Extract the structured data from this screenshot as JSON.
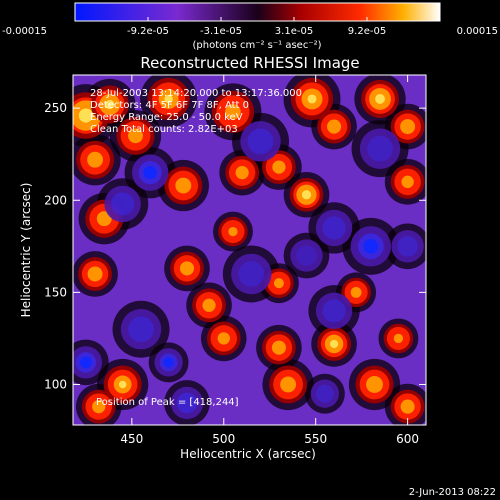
{
  "window": {
    "footer_date": "2-Jun-2013 08:22"
  },
  "colorbar": {
    "tick_labels": [
      "-0.00015",
      "-9.2e-05",
      "-3.1e-05",
      "3.1e-05",
      "9.2e-05",
      "0.00015"
    ],
    "units": "(photons cm⁻² s⁻¹ asec⁻²)",
    "stops": [
      {
        "offset": 0.0,
        "color": "#0018ff"
      },
      {
        "offset": 0.28,
        "color": "#7a2ad0"
      },
      {
        "offset": 0.5,
        "color": "#1a001a"
      },
      {
        "offset": 0.62,
        "color": "#a80000"
      },
      {
        "offset": 0.78,
        "color": "#ff2a00"
      },
      {
        "offset": 0.9,
        "color": "#ffb000"
      },
      {
        "offset": 1.0,
        "color": "#ffffff"
      }
    ]
  },
  "chart_data": {
    "type": "heatmap",
    "title": "Reconstructed RHESSI Image",
    "xlabel": "Heliocentric X (arcsec)",
    "ylabel": "Heliocentric Y (arcsec)",
    "xlim": [
      418,
      610
    ],
    "ylim": [
      78,
      268
    ],
    "x_ticks": [
      450,
      500,
      550,
      600
    ],
    "y_ticks": [
      100,
      150,
      200,
      250
    ],
    "colorbar_range": [
      -0.00015,
      0.00015
    ],
    "annotations": {
      "time": "28-Jul-2003 13:14:20.000 to 13:17:36.000",
      "detectors": "Detectors: 4F 5F 6F 7F 8F, Att 0",
      "energy": "Energy Range: 25.0 - 50.0 keV",
      "clean": "Clean    Total counts: 2.82E+03",
      "peak": "Position of Peak = [418,244]"
    },
    "peak": {
      "x": 418,
      "y": 244
    },
    "grid": false,
    "features": [
      {
        "x": 425,
        "y": 246,
        "v": 1.0,
        "s": 11
      },
      {
        "x": 438,
        "y": 252,
        "v": 0.8,
        "s": 9
      },
      {
        "x": 470,
        "y": 255,
        "v": 0.65,
        "s": 10
      },
      {
        "x": 452,
        "y": 235,
        "v": 0.5,
        "s": 9
      },
      {
        "x": 505,
        "y": 248,
        "v": 0.45,
        "s": 10
      },
      {
        "x": 548,
        "y": 255,
        "v": 0.7,
        "s": 10
      },
      {
        "x": 560,
        "y": 240,
        "v": 0.55,
        "s": 8
      },
      {
        "x": 585,
        "y": 255,
        "v": 0.85,
        "s": 9
      },
      {
        "x": 600,
        "y": 240,
        "v": 0.6,
        "s": 8
      },
      {
        "x": 430,
        "y": 222,
        "v": 0.55,
        "s": 9
      },
      {
        "x": 478,
        "y": 208,
        "v": 0.55,
        "s": 9
      },
      {
        "x": 510,
        "y": 215,
        "v": 0.5,
        "s": 8
      },
      {
        "x": 545,
        "y": 203,
        "v": 0.9,
        "s": 8
      },
      {
        "x": 530,
        "y": 218,
        "v": 0.5,
        "s": 8
      },
      {
        "x": 600,
        "y": 210,
        "v": 0.45,
        "s": 8
      },
      {
        "x": 435,
        "y": 190,
        "v": 0.5,
        "s": 9
      },
      {
        "x": 505,
        "y": 183,
        "v": 0.35,
        "s": 7
      },
      {
        "x": 430,
        "y": 160,
        "v": 0.6,
        "s": 8
      },
      {
        "x": 480,
        "y": 163,
        "v": 0.55,
        "s": 8
      },
      {
        "x": 492,
        "y": 143,
        "v": 0.5,
        "s": 8
      },
      {
        "x": 530,
        "y": 155,
        "v": 0.4,
        "s": 7
      },
      {
        "x": 572,
        "y": 150,
        "v": 0.45,
        "s": 7
      },
      {
        "x": 500,
        "y": 125,
        "v": 0.45,
        "s": 8
      },
      {
        "x": 530,
        "y": 120,
        "v": 0.55,
        "s": 8
      },
      {
        "x": 560,
        "y": 122,
        "v": 0.8,
        "s": 8
      },
      {
        "x": 595,
        "y": 125,
        "v": 0.35,
        "s": 7
      },
      {
        "x": 445,
        "y": 100,
        "v": 0.65,
        "s": 9
      },
      {
        "x": 432,
        "y": 88,
        "v": 0.5,
        "s": 8
      },
      {
        "x": 535,
        "y": 100,
        "v": 0.55,
        "s": 9
      },
      {
        "x": 582,
        "y": 100,
        "v": 0.6,
        "s": 9
      },
      {
        "x": 600,
        "y": 88,
        "v": 0.55,
        "s": 8
      },
      {
        "x": 460,
        "y": 215,
        "v": -0.9,
        "s": 9
      },
      {
        "x": 445,
        "y": 198,
        "v": -0.6,
        "s": 9
      },
      {
        "x": 520,
        "y": 232,
        "v": -0.6,
        "s": 10
      },
      {
        "x": 585,
        "y": 228,
        "v": -0.5,
        "s": 10
      },
      {
        "x": 580,
        "y": 175,
        "v": -0.9,
        "s": 10
      },
      {
        "x": 560,
        "y": 185,
        "v": -0.6,
        "s": 9
      },
      {
        "x": 560,
        "y": 140,
        "v": -0.55,
        "s": 9
      },
      {
        "x": 600,
        "y": 175,
        "v": -0.55,
        "s": 8
      },
      {
        "x": 455,
        "y": 130,
        "v": -0.6,
        "s": 10
      },
      {
        "x": 515,
        "y": 160,
        "v": -0.5,
        "s": 10
      },
      {
        "x": 425,
        "y": 112,
        "v": -0.9,
        "s": 8
      },
      {
        "x": 470,
        "y": 112,
        "v": -0.85,
        "s": 7
      },
      {
        "x": 480,
        "y": 90,
        "v": -0.7,
        "s": 8
      },
      {
        "x": 555,
        "y": 95,
        "v": -0.5,
        "s": 7
      },
      {
        "x": 545,
        "y": 170,
        "v": -0.4,
        "s": 8
      }
    ]
  }
}
